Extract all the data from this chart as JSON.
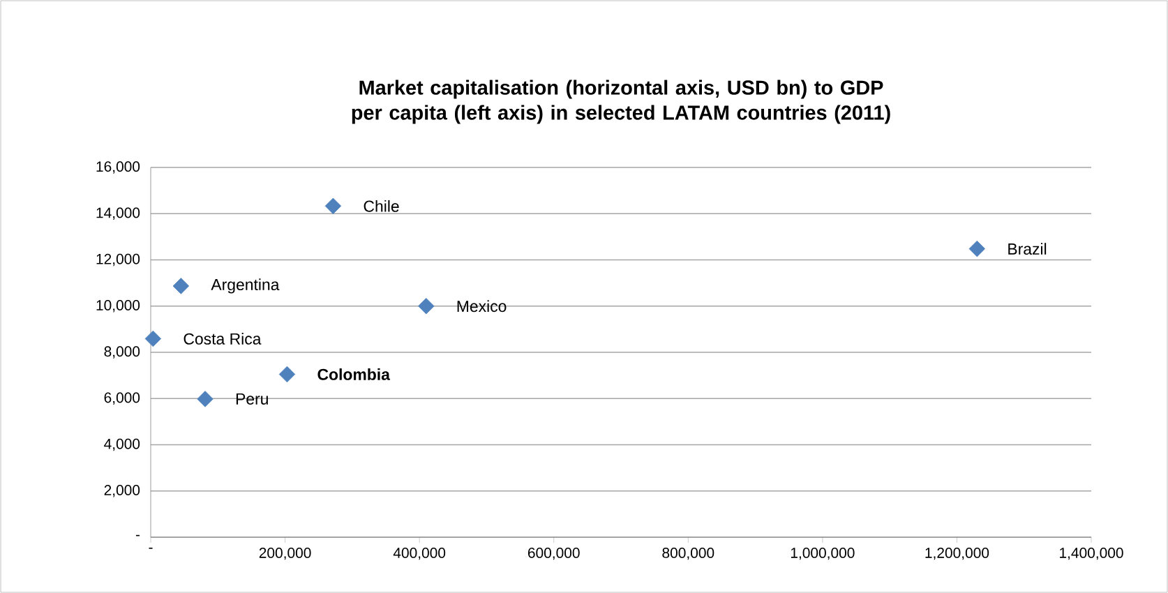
{
  "chart_data": {
    "type": "scatter",
    "title": "Market capitalisation (horizontal axis, USD bn) to GDP per capita (left axis) in selected LATAM countries (2011)",
    "series": [
      {
        "color": "#4f81bd",
        "x": [
          271500,
          45000,
          410000,
          3500,
          203000,
          81000,
          1230000
        ],
        "values": [
          14330,
          10870,
          10000,
          8590,
          7050,
          5980,
          12480
        ]
      }
    ],
    "annotations": [
      {
        "text": "Chile",
        "x": 271500,
        "y": 14330
      },
      {
        "text": "Argentina",
        "x": 45000,
        "y": 10870
      },
      {
        "text": "Mexico",
        "x": 410000,
        "y": 10000
      },
      {
        "text": "Costa Rica",
        "x": 3500,
        "y": 8590
      },
      {
        "text": "**Colombia**",
        "x": 203000,
        "y": 7050
      },
      {
        "text": "Peru",
        "x": 81000,
        "y": 5980
      },
      {
        "text": "Brazil",
        "x": 1230000,
        "y": 12480
      }
    ],
    "xlim": [
      0,
      1400000
    ],
    "xticks": [
      {
        "value": 0,
        "label": "-"
      },
      {
        "value": 200000,
        "label": "200,000"
      },
      {
        "value": 400000,
        "label": "400,000"
      },
      {
        "value": 600000,
        "label": "600,000"
      },
      {
        "value": 800000,
        "label": "800,000"
      },
      {
        "value": 1000000,
        "label": "1,000,000"
      },
      {
        "value": 1200000,
        "label": "1,200,000"
      },
      {
        "value": 1400000,
        "label": "1,400,000"
      }
    ],
    "ylim": [
      0,
      16000
    ],
    "yticks": [
      {
        "value": 0,
        "label": "-"
      },
      {
        "value": 2000,
        "label": "2,000"
      },
      {
        "value": 4000,
        "label": "4,000"
      },
      {
        "value": 6000,
        "label": "6,000"
      },
      {
        "value": 8000,
        "label": "8,000"
      },
      {
        "value": 10000,
        "label": "10,000"
      },
      {
        "value": 12000,
        "label": "12,000"
      },
      {
        "value": 14000,
        "label": "14,000"
      },
      {
        "value": 16000,
        "label": "16,000"
      }
    ],
    "grid": "y",
    "marker": "diamond"
  }
}
